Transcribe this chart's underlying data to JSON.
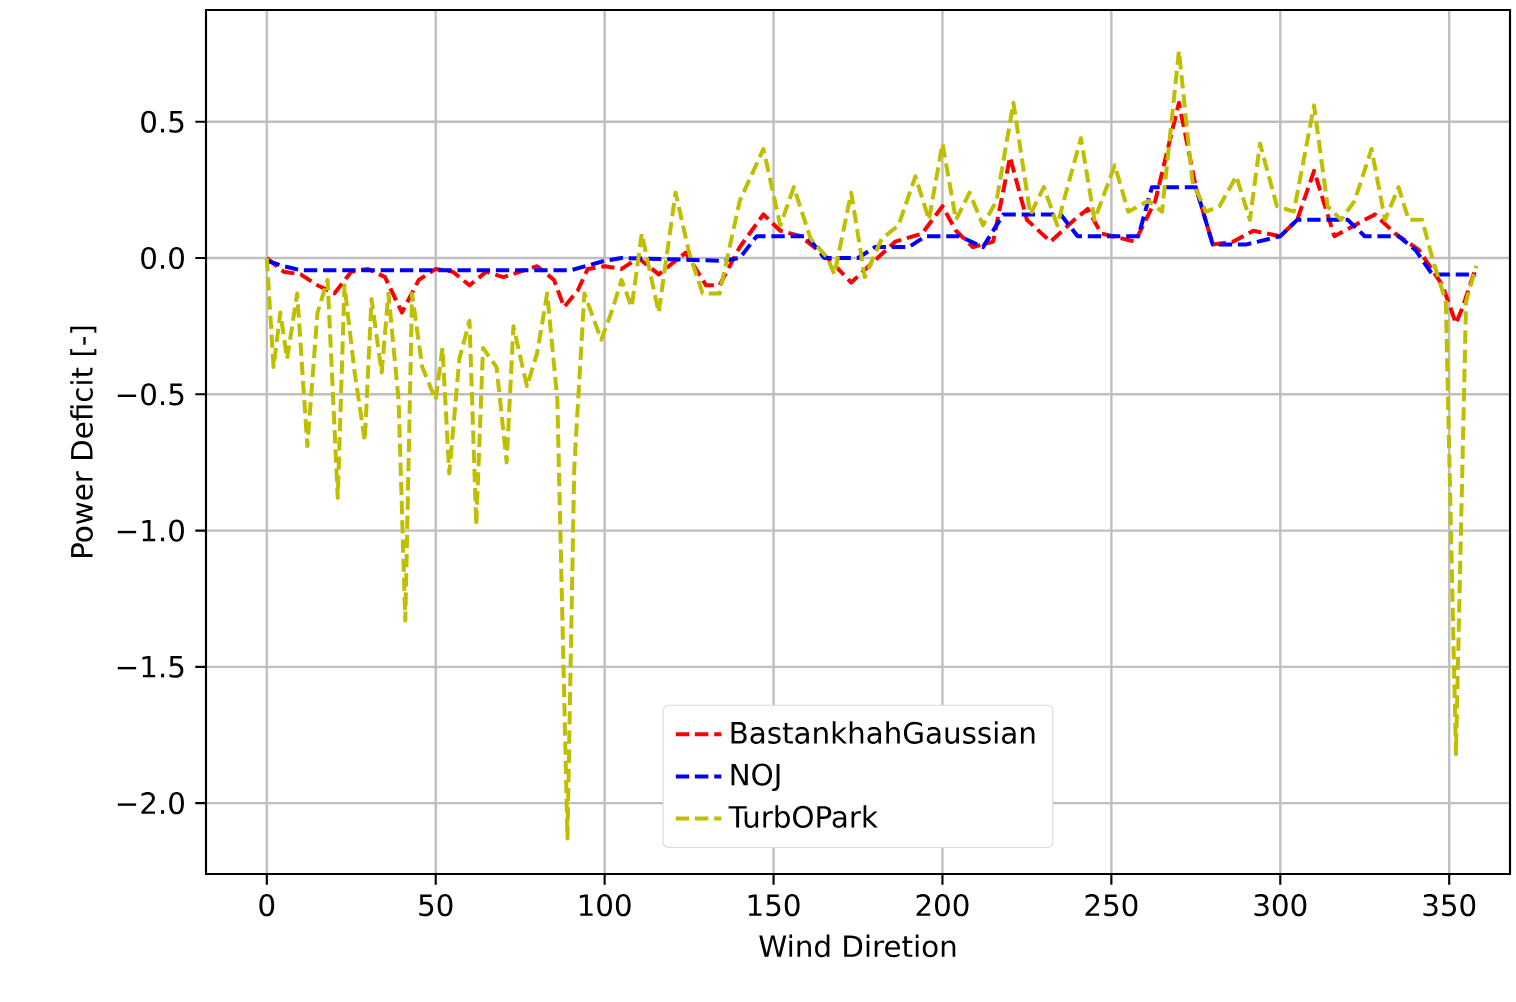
{
  "chart_data": {
    "type": "line",
    "xlabel": "Wind Diretion",
    "ylabel": "Power Deficit [-]",
    "xlim": [
      -18,
      368
    ],
    "ylim": [
      -2.26,
      0.91
    ],
    "xticks": [
      0,
      50,
      100,
      150,
      200,
      250,
      300,
      350
    ],
    "yticks": [
      {
        "value": -2.0,
        "label": "−2.0"
      },
      {
        "value": -1.5,
        "label": "−1.5"
      },
      {
        "value": -1.0,
        "label": "−1.0"
      },
      {
        "value": -0.5,
        "label": "−0.5"
      },
      {
        "value": 0.0,
        "label": "0.0"
      },
      {
        "value": 0.5,
        "label": "0.5"
      }
    ],
    "grid": true,
    "legend": "bottom",
    "line_style": "dashed",
    "series": [
      {
        "name": "BastankhahGaussian",
        "color": "#ff0000",
        "x": [
          0,
          5,
          10,
          15,
          20,
          25,
          30,
          35,
          40,
          45,
          50,
          55,
          60,
          65,
          70,
          75,
          80,
          85,
          88,
          92,
          95,
          100,
          105,
          110,
          116,
          124,
          130,
          134,
          140,
          147,
          152,
          158,
          166,
          173,
          179,
          186,
          194,
          200,
          204,
          209,
          215,
          220,
          225,
          232,
          239,
          243,
          247,
          257,
          263,
          270,
          275,
          280,
          286,
          292,
          300,
          305,
          310,
          316,
          322,
          328,
          334,
          341,
          348,
          352,
          354,
          358
        ],
        "values": [
          0.0,
          -0.05,
          -0.06,
          -0.1,
          -0.13,
          -0.05,
          -0.04,
          -0.07,
          -0.2,
          -0.08,
          -0.04,
          -0.05,
          -0.1,
          -0.05,
          -0.07,
          -0.05,
          -0.03,
          -0.08,
          -0.18,
          -0.12,
          -0.04,
          -0.03,
          -0.04,
          -0.0,
          -0.06,
          0.02,
          -0.1,
          -0.1,
          0.04,
          0.16,
          0.1,
          0.08,
          0.0,
          -0.09,
          -0.02,
          0.06,
          0.09,
          0.19,
          0.1,
          0.04,
          0.06,
          0.37,
          0.14,
          0.06,
          0.14,
          0.18,
          0.09,
          0.06,
          0.21,
          0.57,
          0.26,
          0.05,
          0.06,
          0.1,
          0.08,
          0.14,
          0.32,
          0.08,
          0.12,
          0.16,
          0.09,
          0.03,
          -0.1,
          -0.24,
          -0.18,
          -0.03
        ]
      },
      {
        "name": "NOJ",
        "color": "#0000ff",
        "x": [
          0,
          5,
          10,
          30,
          60,
          90,
          100,
          105,
          135,
          140,
          145,
          160,
          165,
          175,
          180,
          190,
          195,
          205,
          212,
          218,
          235,
          240,
          258,
          262,
          275,
          280,
          290,
          300,
          305,
          320,
          325,
          335,
          340,
          345,
          358
        ],
        "values": [
          -0.01,
          -0.03,
          -0.045,
          -0.045,
          -0.045,
          -0.045,
          -0.01,
          0.0,
          -0.01,
          0.0,
          0.08,
          0.08,
          0.0,
          0.0,
          0.04,
          0.04,
          0.08,
          0.08,
          0.04,
          0.16,
          0.16,
          0.08,
          0.08,
          0.26,
          0.26,
          0.05,
          0.05,
          0.08,
          0.14,
          0.14,
          0.08,
          0.08,
          0.03,
          -0.06,
          -0.06
        ]
      },
      {
        "name": "TurbOPark",
        "color": "#bfbf00",
        "x": [
          0,
          2,
          4,
          6,
          9,
          12,
          15,
          18,
          21,
          23,
          26,
          29,
          31,
          34,
          36,
          39,
          41,
          43,
          46,
          50,
          52,
          54,
          57,
          60,
          62,
          64,
          68,
          71,
          73,
          77,
          80,
          83,
          86,
          89,
          91,
          94,
          99,
          102,
          105,
          108,
          111,
          116,
          121,
          125,
          129,
          134,
          140,
          147,
          152,
          156,
          161,
          166,
          168,
          173,
          177,
          182,
          187,
          192,
          196,
          200,
          204,
          208,
          212,
          216,
          221,
          226,
          230,
          234,
          237,
          241,
          245,
          251,
          255,
          261,
          265,
          270,
          274,
          278,
          282,
          287,
          291,
          294,
          299,
          304,
          310,
          314,
          318,
          322,
          327,
          331,
          335,
          338,
          342,
          345,
          349,
          352,
          355,
          358
        ],
        "values": [
          0.0,
          -0.4,
          -0.2,
          -0.37,
          -0.13,
          -0.69,
          -0.2,
          -0.08,
          -0.88,
          -0.1,
          -0.42,
          -0.67,
          -0.15,
          -0.42,
          -0.13,
          -0.52,
          -1.33,
          -0.13,
          -0.4,
          -0.52,
          -0.33,
          -0.79,
          -0.37,
          -0.23,
          -0.98,
          -0.33,
          -0.4,
          -0.75,
          -0.25,
          -0.47,
          -0.35,
          -0.13,
          -0.52,
          -2.13,
          -0.77,
          -0.13,
          -0.3,
          -0.2,
          -0.08,
          -0.18,
          0.09,
          -0.2,
          0.24,
          0.02,
          -0.13,
          -0.13,
          0.21,
          0.4,
          0.12,
          0.26,
          0.07,
          0.0,
          -0.06,
          0.24,
          -0.07,
          0.07,
          0.12,
          0.3,
          0.14,
          0.42,
          0.14,
          0.24,
          0.12,
          0.21,
          0.57,
          0.16,
          0.26,
          0.12,
          0.26,
          0.44,
          0.14,
          0.34,
          0.17,
          0.21,
          0.17,
          0.76,
          0.28,
          0.17,
          0.19,
          0.3,
          0.14,
          0.42,
          0.19,
          0.17,
          0.56,
          0.19,
          0.14,
          0.21,
          0.4,
          0.14,
          0.26,
          0.14,
          0.14,
          0.0,
          -0.16,
          -1.82,
          -0.16,
          -0.03
        ]
      }
    ]
  }
}
